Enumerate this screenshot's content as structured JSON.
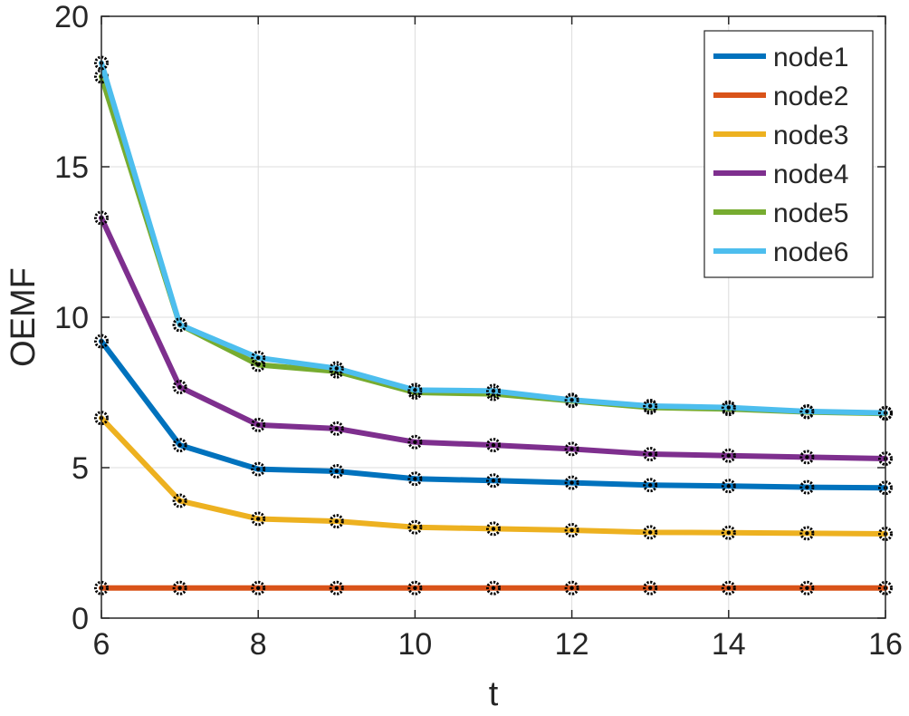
{
  "chart_data": {
    "type": "line",
    "xlabel": "t",
    "ylabel": "OEMF",
    "xlim": [
      6,
      16
    ],
    "ylim": [
      0,
      20
    ],
    "xticks": [
      6,
      8,
      10,
      12,
      14,
      16
    ],
    "yticks": [
      0,
      5,
      10,
      15,
      20
    ],
    "grid": true,
    "legend_position": "top-right",
    "x": [
      6,
      7,
      8,
      9,
      10,
      11,
      12,
      13,
      14,
      15,
      16
    ],
    "series": [
      {
        "name": "node1",
        "color": "#0072BD",
        "values": [
          9.2,
          5.75,
          4.95,
          4.88,
          4.63,
          4.57,
          4.5,
          4.42,
          4.39,
          4.35,
          4.33
        ]
      },
      {
        "name": "node2",
        "color": "#D95319",
        "values": [
          1.0,
          1.0,
          1.0,
          1.0,
          1.0,
          1.0,
          1.0,
          1.0,
          1.0,
          1.0,
          1.0
        ]
      },
      {
        "name": "node3",
        "color": "#EDB120",
        "values": [
          6.65,
          3.9,
          3.3,
          3.22,
          3.02,
          2.97,
          2.92,
          2.85,
          2.84,
          2.82,
          2.8
        ]
      },
      {
        "name": "node4",
        "color": "#7E2F8E",
        "values": [
          13.3,
          7.68,
          6.42,
          6.3,
          5.85,
          5.75,
          5.62,
          5.45,
          5.4,
          5.35,
          5.3
        ]
      },
      {
        "name": "node5",
        "color": "#77AC30",
        "values": [
          18.0,
          9.75,
          8.42,
          8.2,
          7.5,
          7.45,
          7.22,
          7.0,
          6.95,
          6.85,
          6.8
        ]
      },
      {
        "name": "node6",
        "color": "#4DBEEE",
        "values": [
          18.45,
          9.75,
          8.65,
          8.3,
          7.58,
          7.55,
          7.25,
          7.05,
          7.0,
          6.87,
          6.82
        ]
      }
    ]
  }
}
